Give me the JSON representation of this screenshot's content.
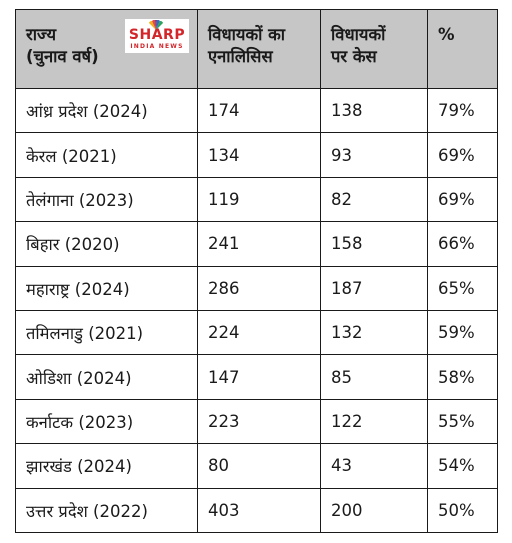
{
  "table": {
    "headers": {
      "state": [
        "राज्य",
        "(चुनाव वर्ष)"
      ],
      "analysed": [
        "विधायकों का",
        "एनालिसिस"
      ],
      "cases": [
        "विधायकों",
        "पर केस"
      ],
      "pct": [
        "%"
      ]
    },
    "logo": {
      "brand": "SHARP",
      "sub": "INDIA NEWS",
      "color": "#d3262b"
    },
    "rows": [
      {
        "state": "आंध्र प्रदेश (2024)",
        "analysed": "174",
        "cases": "138",
        "pct": "79%"
      },
      {
        "state": "केरल (2021)",
        "analysed": "134",
        "cases": "93",
        "pct": "69%"
      },
      {
        "state": "तेलंगाना (2023)",
        "analysed": "119",
        "cases": "82",
        "pct": "69%"
      },
      {
        "state": "बिहार (2020)",
        "analysed": "241",
        "cases": "158",
        "pct": "66%"
      },
      {
        "state": "महाराष्ट्र (2024)",
        "analysed": "286",
        "cases": "187",
        "pct": "65%"
      },
      {
        "state": "तमिलनाडु (2021)",
        "analysed": "224",
        "cases": "132",
        "pct": "59%"
      },
      {
        "state": "ओडिशा (2024)",
        "analysed": "147",
        "cases": "85",
        "pct": "58%"
      },
      {
        "state": "कर्नाटक (2023)",
        "analysed": "223",
        "cases": "122",
        "pct": "55%"
      },
      {
        "state": "झारखंड (2024)",
        "analysed": "80",
        "cases": "43",
        "pct": "54%"
      },
      {
        "state": "उत्तर प्रदेश (2022)",
        "analysed": "403",
        "cases": "200",
        "pct": "50%"
      }
    ]
  }
}
